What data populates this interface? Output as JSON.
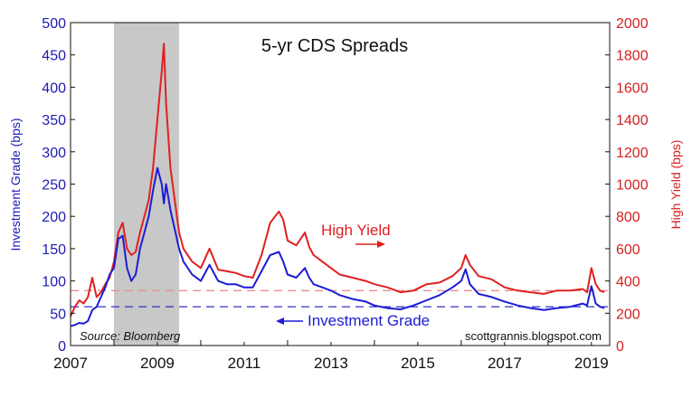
{
  "chart_data": {
    "type": "line",
    "title": "5-yr CDS Spreads",
    "source": "Source: Bloomberg",
    "credit": "scottgrannis.blogspot.com",
    "xlabel": "",
    "x_ticks": [
      "2007",
      "2009",
      "2011",
      "2013",
      "2015",
      "2017",
      "2019"
    ],
    "xlim": [
      2007,
      2019.42
    ],
    "left_axis": {
      "label": "Investment Grade (bps)",
      "color": "#1c1cb4",
      "ylim": [
        0,
        500
      ],
      "ticks": [
        "0",
        "50",
        "100",
        "150",
        "200",
        "250",
        "300",
        "350",
        "400",
        "450",
        "500"
      ]
    },
    "right_axis": {
      "label": "High Yield (bps)",
      "color": "#d62020",
      "ylim": [
        0,
        2000
      ],
      "ticks": [
        "0",
        "200",
        "400",
        "600",
        "800",
        "1000",
        "1200",
        "1400",
        "1600",
        "1800",
        "2000"
      ]
    },
    "shaded_region": {
      "x": [
        2008.0,
        2009.5
      ],
      "color": "#c8c8c8"
    },
    "series": [
      {
        "name": "High Yield",
        "axis": "right",
        "color": "#e02020",
        "x": [
          2007.0,
          2007.1,
          2007.2,
          2007.3,
          2007.4,
          2007.5,
          2007.6,
          2007.7,
          2007.8,
          2007.9,
          2008.0,
          2008.1,
          2008.2,
          2008.3,
          2008.4,
          2008.5,
          2008.6,
          2008.7,
          2008.8,
          2008.9,
          2009.0,
          2009.1,
          2009.15,
          2009.2,
          2009.3,
          2009.4,
          2009.5,
          2009.6,
          2009.8,
          2010.0,
          2010.2,
          2010.4,
          2010.6,
          2010.8,
          2011.0,
          2011.2,
          2011.4,
          2011.6,
          2011.8,
          2011.9,
          2012.0,
          2012.2,
          2012.4,
          2012.5,
          2012.6,
          2012.8,
          2013.0,
          2013.2,
          2013.5,
          2013.8,
          2014.0,
          2014.3,
          2014.6,
          2014.9,
          2015.2,
          2015.5,
          2015.8,
          2016.0,
          2016.1,
          2016.2,
          2016.4,
          2016.7,
          2017.0,
          2017.3,
          2017.6,
          2017.9,
          2018.2,
          2018.5,
          2018.8,
          2018.9,
          2019.0,
          2019.1,
          2019.2,
          2019.3
        ],
        "values": [
          180,
          240,
          280,
          260,
          300,
          420,
          300,
          330,
          380,
          420,
          520,
          700,
          760,
          600,
          560,
          580,
          700,
          800,
          900,
          1100,
          1400,
          1700,
          1870,
          1500,
          1100,
          900,
          700,
          600,
          520,
          480,
          600,
          470,
          460,
          450,
          430,
          420,
          560,
          760,
          830,
          780,
          650,
          620,
          700,
          610,
          560,
          520,
          480,
          440,
          420,
          400,
          380,
          360,
          330,
          340,
          380,
          390,
          430,
          480,
          560,
          500,
          430,
          410,
          360,
          340,
          330,
          320,
          340,
          340,
          350,
          330,
          480,
          380,
          340,
          330
        ]
      },
      {
        "name": "Investment Grade",
        "axis": "left",
        "color": "#1c1cd6",
        "x": [
          2007.0,
          2007.1,
          2007.2,
          2007.3,
          2007.4,
          2007.5,
          2007.6,
          2007.7,
          2007.8,
          2007.9,
          2008.0,
          2008.1,
          2008.2,
          2008.3,
          2008.4,
          2008.5,
          2008.6,
          2008.7,
          2008.8,
          2008.9,
          2009.0,
          2009.1,
          2009.15,
          2009.2,
          2009.3,
          2009.4,
          2009.5,
          2009.6,
          2009.8,
          2010.0,
          2010.2,
          2010.4,
          2010.6,
          2010.8,
          2011.0,
          2011.2,
          2011.4,
          2011.6,
          2011.8,
          2011.9,
          2012.0,
          2012.2,
          2012.4,
          2012.5,
          2012.6,
          2012.8,
          2013.0,
          2013.2,
          2013.5,
          2013.8,
          2014.0,
          2014.3,
          2014.6,
          2014.9,
          2015.2,
          2015.5,
          2015.8,
          2016.0,
          2016.1,
          2016.2,
          2016.4,
          2016.7,
          2017.0,
          2017.3,
          2017.6,
          2017.9,
          2018.2,
          2018.5,
          2018.8,
          2018.9,
          2019.0,
          2019.1,
          2019.2,
          2019.3
        ],
        "values": [
          30,
          32,
          35,
          34,
          38,
          55,
          60,
          75,
          90,
          110,
          120,
          165,
          170,
          120,
          100,
          110,
          150,
          175,
          200,
          240,
          275,
          250,
          220,
          250,
          210,
          180,
          150,
          130,
          110,
          100,
          125,
          100,
          95,
          95,
          90,
          90,
          115,
          140,
          145,
          130,
          110,
          105,
          120,
          105,
          95,
          90,
          85,
          78,
          72,
          68,
          62,
          58,
          56,
          62,
          70,
          78,
          90,
          100,
          118,
          95,
          80,
          75,
          68,
          62,
          58,
          55,
          58,
          60,
          65,
          62,
          92,
          65,
          60,
          58
        ]
      }
    ],
    "reference_lines": [
      {
        "axis": "right",
        "value": 340,
        "color": "#e89090",
        "style": "dashed"
      },
      {
        "axis": "left",
        "value": 60,
        "color": "#3030c8",
        "style": "dashed"
      }
    ],
    "annotations": [
      {
        "text": "High Yield",
        "color": "#e02020",
        "arrow": "right"
      },
      {
        "text": "Investment Grade",
        "color": "#1c1cd6",
        "arrow": "left"
      }
    ],
    "grid": false,
    "legend": "none"
  }
}
